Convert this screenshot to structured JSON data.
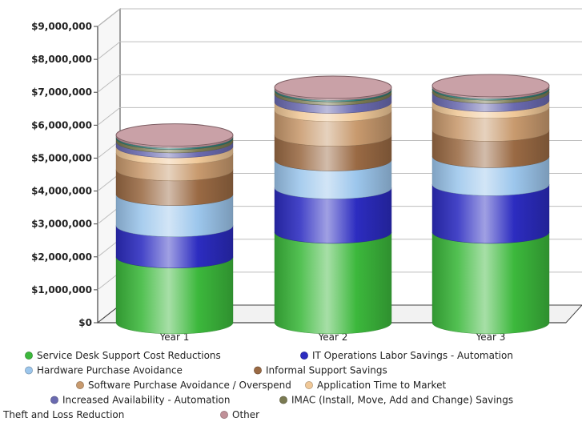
{
  "chart_data": {
    "type": "bar",
    "style": "stacked-cylinder-3d",
    "title": "",
    "xlabel": "",
    "ylabel": "",
    "categories": [
      "Year 1",
      "Year 2",
      "Year 3"
    ],
    "ylim": [
      0,
      9000000
    ],
    "yticks": [
      0,
      1000000,
      2000000,
      3000000,
      4000000,
      5000000,
      6000000,
      7000000,
      8000000,
      9000000
    ],
    "ytick_labels": [
      "$0",
      "$1,000,000",
      "$2,000,000",
      "$3,000,000",
      "$4,000,000",
      "$5,000,000",
      "$6,000,000",
      "$7,000,000",
      "$8,000,000",
      "$9,000,000"
    ],
    "grid": true,
    "legend_position": "bottom",
    "series": [
      {
        "name": "Service Desk Support Cost Reductions",
        "color": "#3cb83c",
        "values": [
          2000000,
          2750000,
          2750000
        ]
      },
      {
        "name": "IT Operations Labor Savings - Automation",
        "color": "#2c2cc0",
        "values": [
          950000,
          1350000,
          1450000
        ]
      },
      {
        "name": "Hardware Purchase Avoidance",
        "color": "#9cc6ec",
        "values": [
          950000,
          850000,
          850000
        ]
      },
      {
        "name": "Informal Support Savings",
        "color": "#9a6a44",
        "values": [
          750000,
          750000,
          800000
        ]
      },
      {
        "name": "Software Purchase Avoidance / Overspend",
        "color": "#c89a6e",
        "values": [
          500000,
          750000,
          700000
        ]
      },
      {
        "name": "Application Time to Market",
        "color": "#f0c898",
        "values": [
          200000,
          250000,
          200000
        ]
      },
      {
        "name": "Increased Availability - Automation",
        "color": "#6a6ab0",
        "values": [
          150000,
          250000,
          250000
        ]
      },
      {
        "name": "IMAC (Install, Move, Add and Change) Savings",
        "color": "#7a7a52",
        "values": [
          100000,
          100000,
          100000
        ]
      },
      {
        "name": "Theft and Loss Reduction",
        "color": "#2e7a74",
        "values": [
          50000,
          50000,
          50000
        ]
      },
      {
        "name": "Other",
        "color": "#c09098",
        "values": [
          50000,
          50000,
          50000
        ]
      }
    ]
  }
}
